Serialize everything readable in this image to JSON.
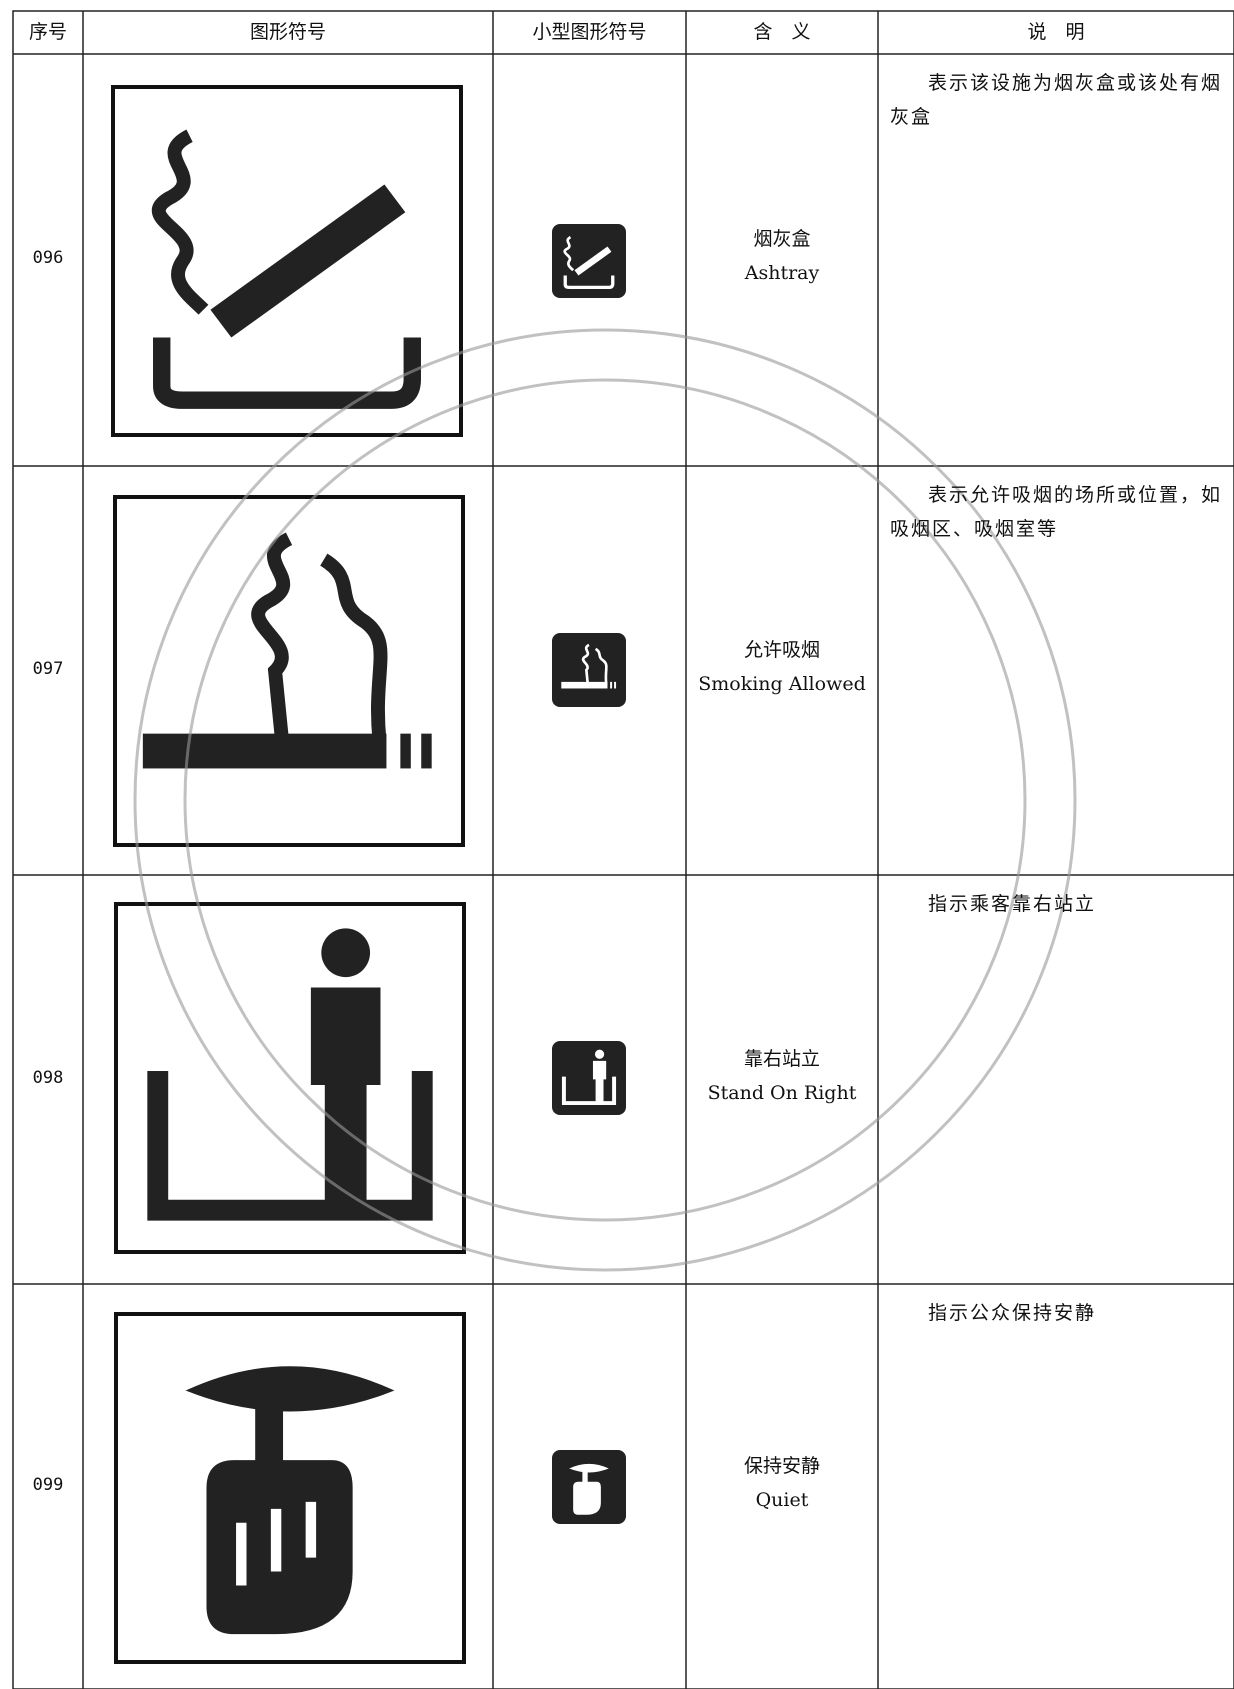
{
  "table": {
    "header": [
      "序号",
      "图形符号",
      "小型图形符号",
      "含　义",
      "说　明"
    ],
    "rows": [
      {
        "number": "096",
        "meaning_cn": "烟灰盒",
        "meaning_en": "Ashtray",
        "description": "表示该设施为烟灰盒或该处有烟灰盒"
      },
      {
        "number": "097",
        "meaning_cn": "允许吸烟",
        "meaning_en": "Smoking Allowed",
        "description": "表示允许吸烟的场所或位置，如吸烟区、吸烟室等"
      },
      {
        "number": "098",
        "meaning_cn": "靠右站立",
        "meaning_en": "Stand On Right",
        "description": "指示乘客靠右站立"
      },
      {
        "number": "099",
        "meaning_cn": "保持安静",
        "meaning_en": "Quiet",
        "description": "指示公众保持安静"
      }
    ]
  }
}
